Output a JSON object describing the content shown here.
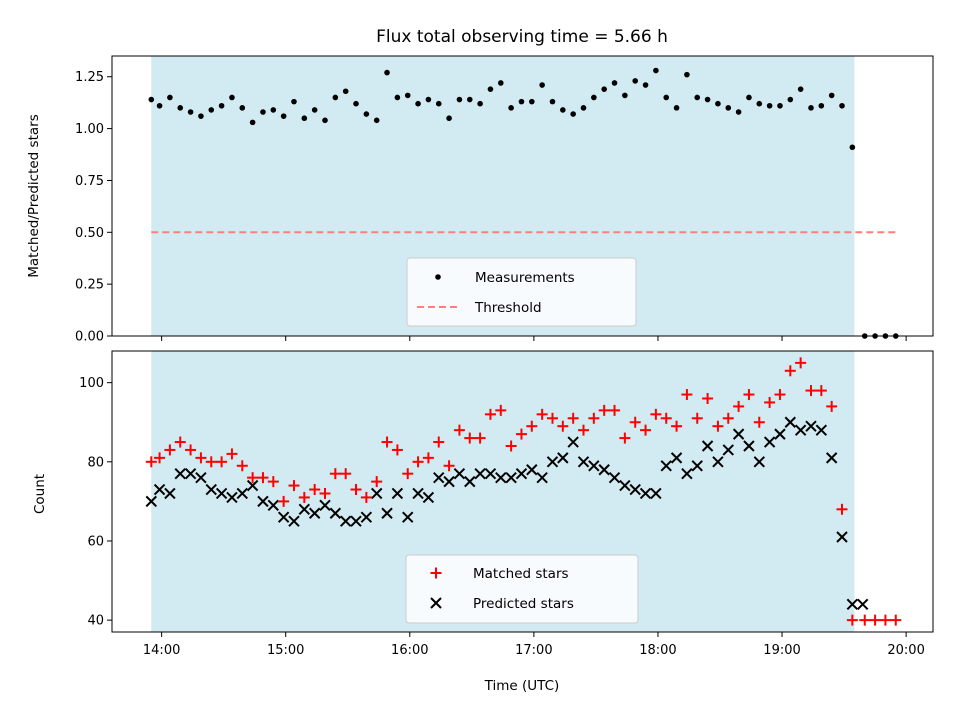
{
  "chart_data": [
    {
      "type": "scatter",
      "title": "Flux total observing time = 5.66 h",
      "ylabel": "Matched/Predicted stars",
      "xlabel": "",
      "xlim": [
        "13:36",
        "20:13"
      ],
      "ylim": [
        0,
        1.35
      ],
      "yticks": [
        "0.00",
        "0.25",
        "0.50",
        "0.75",
        "1.00",
        "1.25"
      ],
      "grid": false,
      "legend_placement": "lower-center",
      "observing_window": {
        "start": "13:55",
        "end": "19:35",
        "color": "#add8e6"
      },
      "series": [
        {
          "name": "Measurements",
          "marker": "dot",
          "color": "#000000",
          "x": [
            "13:55",
            "13:59",
            "14:04",
            "14:09",
            "14:14",
            "14:19",
            "14:24",
            "14:29",
            "14:34",
            "14:39",
            "14:44",
            "14:49",
            "14:54",
            "14:59",
            "15:04",
            "15:09",
            "15:14",
            "15:19",
            "15:24",
            "15:29",
            "15:34",
            "15:39",
            "15:44",
            "15:49",
            "15:54",
            "15:59",
            "16:04",
            "16:09",
            "16:14",
            "16:19",
            "16:24",
            "16:29",
            "16:34",
            "16:39",
            "16:44",
            "16:49",
            "16:54",
            "16:59",
            "17:04",
            "17:09",
            "17:14",
            "17:19",
            "17:24",
            "17:29",
            "17:34",
            "17:39",
            "17:44",
            "17:49",
            "17:54",
            "17:59",
            "18:04",
            "18:09",
            "18:14",
            "18:19",
            "18:24",
            "18:29",
            "18:34",
            "18:39",
            "18:44",
            "18:49",
            "18:54",
            "18:59",
            "19:04",
            "19:09",
            "19:14",
            "19:19",
            "19:24",
            "19:29",
            "19:34",
            "19:40",
            "19:45",
            "19:50",
            "19:55"
          ],
          "y": [
            1.14,
            1.11,
            1.15,
            1.1,
            1.08,
            1.06,
            1.09,
            1.11,
            1.15,
            1.1,
            1.03,
            1.08,
            1.09,
            1.06,
            1.13,
            1.05,
            1.09,
            1.04,
            1.15,
            1.18,
            1.12,
            1.07,
            1.04,
            1.27,
            1.15,
            1.16,
            1.12,
            1.14,
            1.12,
            1.05,
            1.14,
            1.14,
            1.12,
            1.19,
            1.22,
            1.1,
            1.13,
            1.13,
            1.21,
            1.13,
            1.09,
            1.07,
            1.1,
            1.15,
            1.19,
            1.22,
            1.16,
            1.23,
            1.21,
            1.28,
            1.15,
            1.1,
            1.26,
            1.15,
            1.14,
            1.12,
            1.1,
            1.08,
            1.15,
            1.12,
            1.11,
            1.11,
            1.14,
            1.19,
            1.1,
            1.11,
            1.16,
            1.11,
            0.91,
            0.0,
            0.0,
            0.0,
            0.0
          ]
        },
        {
          "name": "Threshold",
          "style": "dashed",
          "color": "#ff7f7f",
          "x": [
            "13:55",
            "19:55"
          ],
          "y": [
            0.5,
            0.5
          ]
        }
      ]
    },
    {
      "type": "scatter",
      "title": "",
      "ylabel": "Count",
      "xlabel": "Time (UTC)",
      "xticks": [
        "14:00",
        "15:00",
        "16:00",
        "17:00",
        "18:00",
        "19:00",
        "20:00"
      ],
      "xlim": [
        "13:36",
        "20:13"
      ],
      "ylim": [
        37,
        108
      ],
      "yticks": [
        "40",
        "60",
        "80",
        "100"
      ],
      "grid": false,
      "legend_placement": "lower-center",
      "observing_window": {
        "start": "13:55",
        "end": "19:35",
        "color": "#add8e6"
      },
      "series": [
        {
          "name": "Matched stars",
          "marker": "plus",
          "color": "#ff0000",
          "x": [
            "13:55",
            "13:59",
            "14:04",
            "14:09",
            "14:14",
            "14:19",
            "14:24",
            "14:29",
            "14:34",
            "14:39",
            "14:44",
            "14:49",
            "14:54",
            "14:59",
            "15:04",
            "15:09",
            "15:14",
            "15:19",
            "15:24",
            "15:29",
            "15:34",
            "15:39",
            "15:44",
            "15:49",
            "15:54",
            "15:59",
            "16:04",
            "16:09",
            "16:14",
            "16:19",
            "16:24",
            "16:29",
            "16:34",
            "16:39",
            "16:44",
            "16:49",
            "16:54",
            "16:59",
            "17:04",
            "17:09",
            "17:14",
            "17:19",
            "17:24",
            "17:29",
            "17:34",
            "17:39",
            "17:44",
            "17:49",
            "17:54",
            "17:59",
            "18:04",
            "18:09",
            "18:14",
            "18:19",
            "18:24",
            "18:29",
            "18:34",
            "18:39",
            "18:44",
            "18:49",
            "18:54",
            "18:59",
            "19:04",
            "19:09",
            "19:14",
            "19:19",
            "19:24",
            "19:29",
            "19:34",
            "19:40",
            "19:45",
            "19:50",
            "19:55"
          ],
          "y": [
            80,
            81,
            83,
            85,
            83,
            81,
            80,
            80,
            82,
            79,
            76,
            76,
            75,
            70,
            74,
            71,
            73,
            72,
            77,
            77,
            73,
            71,
            75,
            85,
            83,
            77,
            80,
            81,
            85,
            79,
            88,
            86,
            86,
            92,
            93,
            84,
            87,
            89,
            92,
            91,
            89,
            91,
            88,
            91,
            93,
            93,
            86,
            90,
            88,
            92,
            91,
            89,
            97,
            91,
            96,
            89,
            91,
            94,
            97,
            90,
            95,
            97,
            103,
            105,
            98,
            98,
            94,
            68,
            40,
            40,
            40,
            40,
            40
          ]
        },
        {
          "name": "Predicted stars",
          "marker": "x",
          "color": "#000000",
          "x": [
            "13:55",
            "13:59",
            "14:04",
            "14:09",
            "14:14",
            "14:19",
            "14:24",
            "14:29",
            "14:34",
            "14:39",
            "14:44",
            "14:49",
            "14:54",
            "14:59",
            "15:04",
            "15:09",
            "15:14",
            "15:19",
            "15:24",
            "15:29",
            "15:34",
            "15:39",
            "15:44",
            "15:49",
            "15:54",
            "15:59",
            "16:04",
            "16:09",
            "16:14",
            "16:19",
            "16:24",
            "16:29",
            "16:34",
            "16:39",
            "16:44",
            "16:49",
            "16:54",
            "16:59",
            "17:04",
            "17:09",
            "17:14",
            "17:19",
            "17:24",
            "17:29",
            "17:34",
            "17:39",
            "17:44",
            "17:49",
            "17:54",
            "17:59",
            "18:04",
            "18:09",
            "18:14",
            "18:19",
            "18:24",
            "18:29",
            "18:34",
            "18:39",
            "18:44",
            "18:49",
            "18:54",
            "18:59",
            "19:04",
            "19:09",
            "19:14",
            "19:19",
            "19:24",
            "19:29",
            "19:34",
            "19:39"
          ],
          "y": [
            70,
            73,
            72,
            77,
            77,
            76,
            73,
            72,
            71,
            72,
            74,
            70,
            69,
            66,
            65,
            68,
            67,
            69,
            67,
            65,
            65,
            66,
            72,
            67,
            72,
            66,
            72,
            71,
            76,
            75,
            77,
            75,
            77,
            77,
            76,
            76,
            77,
            78,
            76,
            80,
            81,
            85,
            80,
            79,
            78,
            76,
            74,
            73,
            72,
            72,
            79,
            81,
            77,
            79,
            84,
            80,
            83,
            87,
            84,
            80,
            85,
            87,
            90,
            88,
            89,
            88,
            81,
            61,
            44,
            44
          ]
        }
      ]
    }
  ]
}
